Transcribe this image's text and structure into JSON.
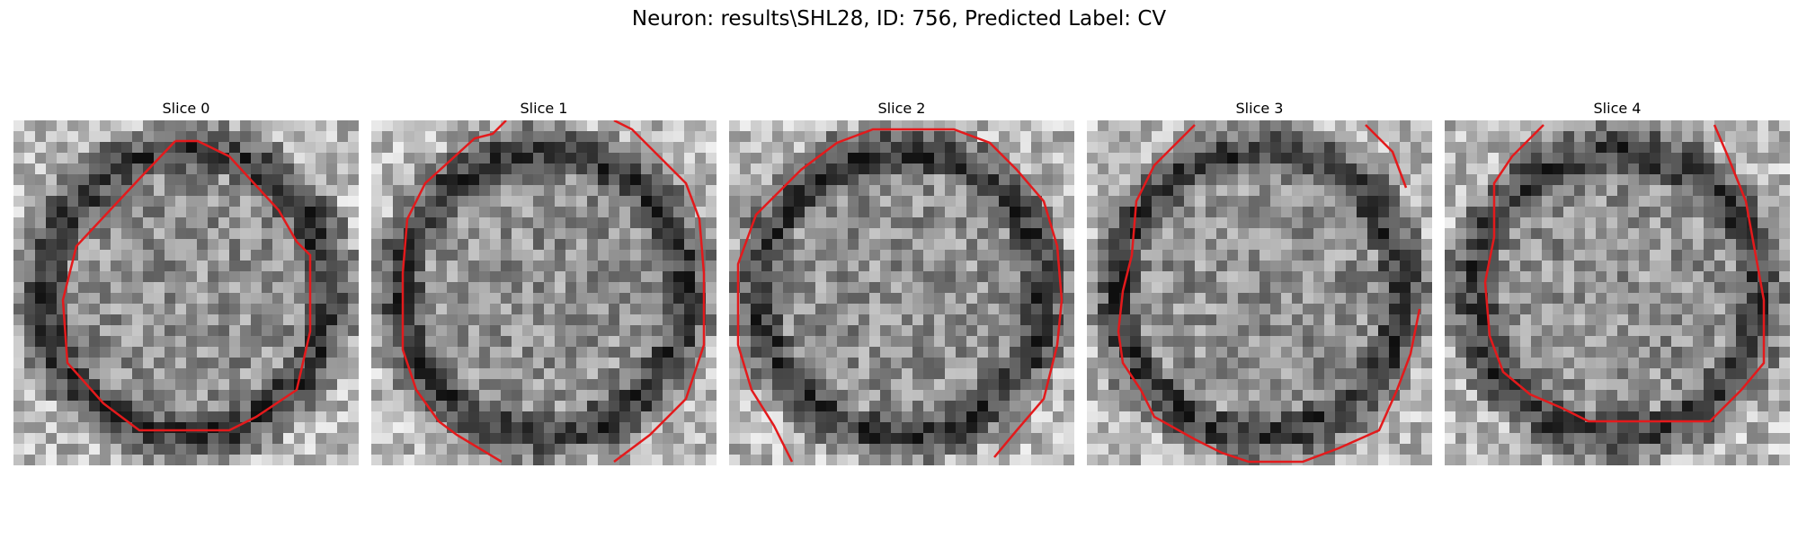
{
  "figure": {
    "title": "Neuron: results\\SHL28, ID: 756, Predicted Label: CV",
    "contour_color": "#e31a1c"
  },
  "panels": [
    {
      "title": "Slice 0",
      "seed": 11,
      "shape": "octagon-inner"
    },
    {
      "title": "Slice 1",
      "seed": 23,
      "shape": "octagon-large"
    },
    {
      "title": "Slice 2",
      "seed": 37,
      "shape": "octagon-full"
    },
    {
      "title": "Slice 3",
      "seed": 41,
      "shape": "octagon-low"
    },
    {
      "title": "Slice 4",
      "seed": 59,
      "shape": "octagon-high"
    }
  ]
}
